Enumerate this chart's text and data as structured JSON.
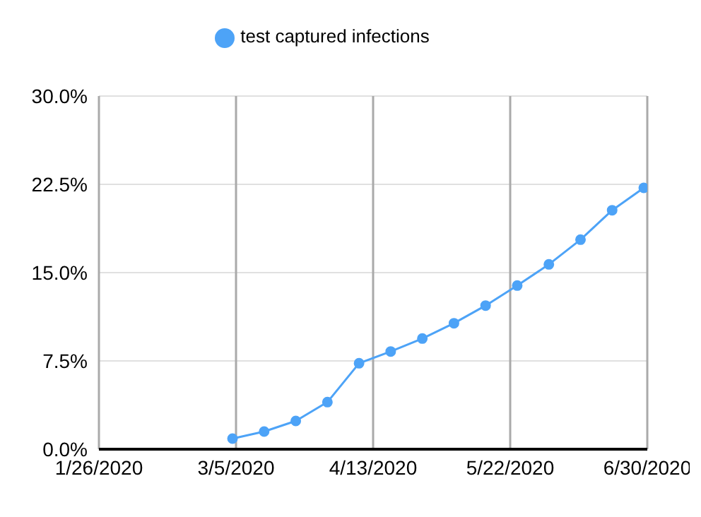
{
  "chart_data": {
    "type": "line",
    "x": [
      "2020-03-04",
      "2020-03-13",
      "2020-03-22",
      "2020-03-31",
      "2020-04-09",
      "2020-04-18",
      "2020-04-27",
      "2020-05-06",
      "2020-05-15",
      "2020-05-24",
      "2020-06-02",
      "2020-06-11",
      "2020-06-20",
      "2020-06-29"
    ],
    "series": [
      {
        "name": "test captured infections",
        "color": "#4da3f7",
        "values": [
          0.9,
          1.5,
          2.4,
          4.0,
          7.3,
          8.3,
          9.4,
          10.7,
          12.2,
          13.9,
          15.7,
          17.8,
          20.3,
          22.2
        ]
      }
    ],
    "xlim": [
      "2020-01-26",
      "2020-06-30"
    ],
    "xticks": [
      {
        "value": "2020-01-26",
        "label": "1/26/2020"
      },
      {
        "value": "2020-03-05",
        "label": "3/5/2020"
      },
      {
        "value": "2020-04-13",
        "label": "4/13/2020"
      },
      {
        "value": "2020-05-22",
        "label": "5/22/2020"
      },
      {
        "value": "2020-06-30",
        "label": "6/30/2020"
      }
    ],
    "ylim": [
      0,
      30
    ],
    "yticks": [
      {
        "value": 0,
        "label": "0.0%"
      },
      {
        "value": 7.5,
        "label": "7.5%"
      },
      {
        "value": 15,
        "label": "15.0%"
      },
      {
        "value": 22.5,
        "label": "22.5%"
      },
      {
        "value": 30,
        "label": "30.0%"
      }
    ],
    "grid": true,
    "legend": "top",
    "marker": "circle",
    "line_style": "solid"
  }
}
